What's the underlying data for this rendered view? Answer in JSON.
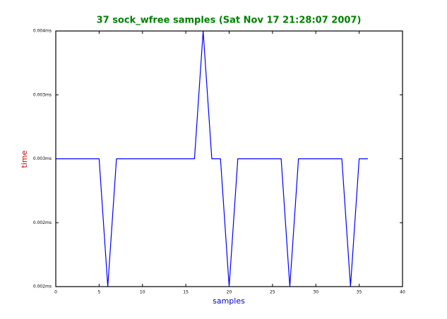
{
  "chart_data": {
    "type": "line",
    "title": "37 sock_wfree samples (Sat Nov 17 21:28:07 2007)",
    "xlabel": "samples",
    "ylabel": "time",
    "x": [
      0,
      1,
      2,
      3,
      4,
      5,
      6,
      7,
      8,
      9,
      10,
      11,
      12,
      13,
      14,
      15,
      16,
      17,
      18,
      19,
      20,
      21,
      22,
      23,
      24,
      25,
      26,
      27,
      28,
      29,
      30,
      31,
      32,
      33,
      34,
      35,
      36
    ],
    "series": [
      {
        "color": "#0000ff",
        "values": [
          0.003,
          0.003,
          0.003,
          0.003,
          0.003,
          0.003,
          0.002,
          0.003,
          0.003,
          0.003,
          0.003,
          0.003,
          0.003,
          0.003,
          0.003,
          0.003,
          0.003,
          0.004,
          0.003,
          0.003,
          0.002,
          0.003,
          0.003,
          0.003,
          0.003,
          0.003,
          0.003,
          0.002,
          0.003,
          0.003,
          0.003,
          0.003,
          0.003,
          0.003,
          0.002,
          0.003,
          0.003
        ]
      }
    ],
    "xlim": [
      0,
      40
    ],
    "xticks": [
      0,
      5,
      10,
      15,
      20,
      25,
      30,
      35,
      40
    ],
    "ylim": [
      0.002,
      0.004
    ],
    "yticks": [
      {
        "value": 0.002,
        "label": "0.002ms"
      },
      {
        "value": 0.0025,
        "label": "0.002ms"
      },
      {
        "value": 0.003,
        "label": "0.003ms"
      },
      {
        "value": 0.0035,
        "label": "0.003ms"
      },
      {
        "value": 0.004,
        "label": "0.004ms"
      }
    ]
  }
}
